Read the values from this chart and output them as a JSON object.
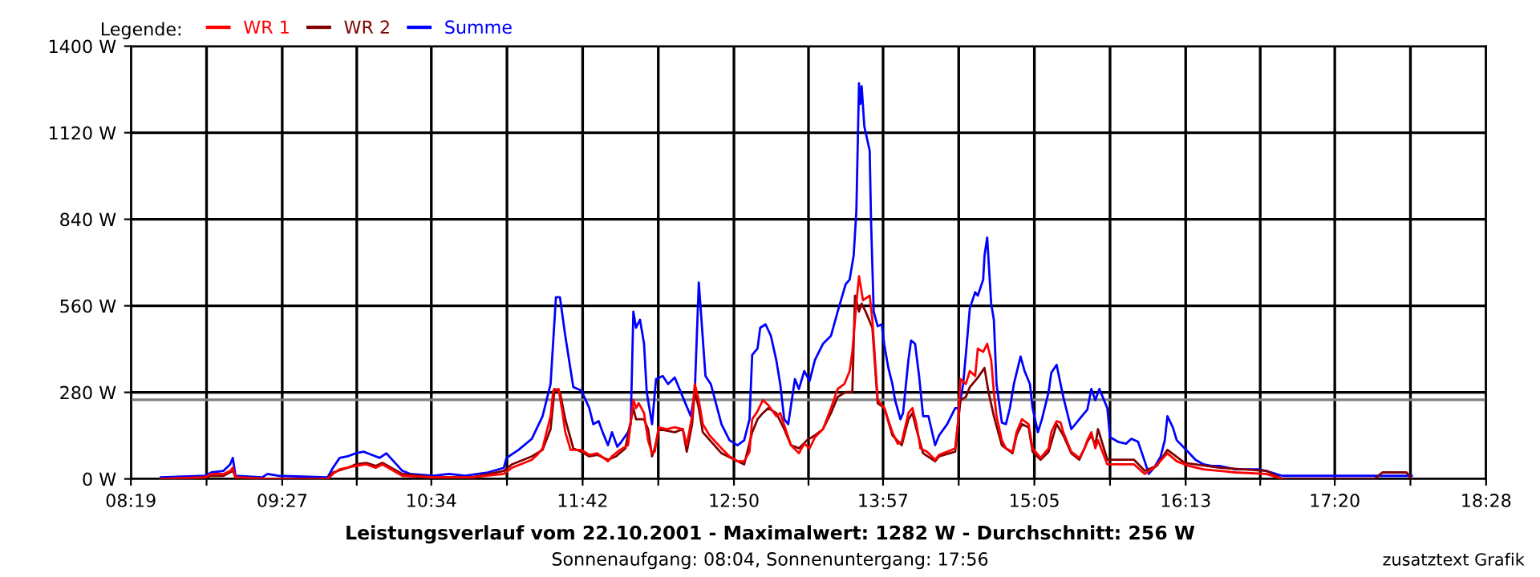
{
  "chart_data": {
    "type": "line",
    "title": "Leistungsverlauf vom 22.10.2001 - Maximalwert: 1282 W - Durchschnitt: 256 W",
    "subtitle": "Sonnenaufgang: 08:04, Sonnenuntergang: 17:56",
    "legend_title": "Legende:",
    "annotations": [
      "zusatztext Grafik"
    ],
    "xlim": [
      8.3167,
      18.4667
    ],
    "xticks": [
      {
        "value": 8.3167,
        "label": "08:19"
      },
      {
        "value": 8.8833,
        "label": null
      },
      {
        "value": 9.45,
        "label": "09:27"
      },
      {
        "value": 10.0083,
        "label": null
      },
      {
        "value": 10.5667,
        "label": "10:34"
      },
      {
        "value": 11.1333,
        "label": null
      },
      {
        "value": 11.7,
        "label": "11:42"
      },
      {
        "value": 12.2667,
        "label": null
      },
      {
        "value": 12.8333,
        "label": "12:50"
      },
      {
        "value": 13.3917,
        "label": null
      },
      {
        "value": 13.95,
        "label": "13:57"
      },
      {
        "value": 14.5167,
        "label": null
      },
      {
        "value": 15.0833,
        "label": "15:05"
      },
      {
        "value": 15.65,
        "label": null
      },
      {
        "value": 16.2167,
        "label": "16:13"
      },
      {
        "value": 16.775,
        "label": null
      },
      {
        "value": 17.3333,
        "label": "17:20"
      },
      {
        "value": 17.9,
        "label": null
      },
      {
        "value": 18.4667,
        "label": "18:28"
      }
    ],
    "ylim": [
      0,
      1400
    ],
    "yticks": [
      {
        "value": 0,
        "label": "0 W"
      },
      {
        "value": 280,
        "label": "280 W"
      },
      {
        "value": 560,
        "label": "560 W"
      },
      {
        "value": 840,
        "label": "840 W"
      },
      {
        "value": 1120,
        "label": "1120 W"
      },
      {
        "value": 1400,
        "label": "1400 W"
      }
    ],
    "grid": true,
    "legend": "top left",
    "ref_lines": [
      {
        "axis": "y",
        "value": 256,
        "color": "#808080"
      }
    ],
    "series": [
      {
        "name": "WR 1",
        "color": "#ff0000",
        "x": [
          8.54,
          8.87,
          8.92,
          9.01,
          9.06,
          9.08,
          9.1,
          9.36,
          9.79,
          9.83,
          9.88,
          10.0,
          10.08,
          10.15,
          10.2,
          10.35,
          10.58,
          10.87,
          11.11,
          11.17,
          11.32,
          11.36,
          11.4,
          11.46,
          11.48,
          11.52,
          11.55,
          11.57,
          11.61,
          11.69,
          11.75,
          11.81,
          11.89,
          11.92,
          11.98,
          12.04,
          12.08,
          12.1,
          12.12,
          12.16,
          12.19,
          12.22,
          12.24,
          12.27,
          12.33,
          12.39,
          12.45,
          12.48,
          12.52,
          12.54,
          12.57,
          12.6,
          12.65,
          12.74,
          12.8,
          12.86,
          12.91,
          12.95,
          12.97,
          13.01,
          13.05,
          13.09,
          13.15,
          13.18,
          13.26,
          13.32,
          13.36,
          13.4,
          13.44,
          13.5,
          13.56,
          13.61,
          13.66,
          13.7,
          13.72,
          13.75,
          13.77,
          13.8,
          13.85,
          13.87,
          13.91,
          13.96,
          14.0,
          14.02,
          14.06,
          14.09,
          14.14,
          14.17,
          14.2,
          14.23,
          14.28,
          14.34,
          14.37,
          14.43,
          14.49,
          14.51,
          14.53,
          14.57,
          14.6,
          14.64,
          14.66,
          14.7,
          14.73,
          14.76,
          14.78,
          14.8,
          14.84,
          14.87,
          14.92,
          14.95,
          14.99,
          15.04,
          15.07,
          15.13,
          15.19,
          15.21,
          15.25,
          15.28,
          15.3,
          15.36,
          15.42,
          15.46,
          15.48,
          15.51,
          15.54,
          15.56,
          15.63,
          15.77,
          15.83,
          15.91,
          15.98,
          16.08,
          16.15,
          16.24,
          16.35,
          16.59,
          16.82,
          16.94
        ],
        "values": [
          0,
          5,
          16,
          16,
          26,
          36,
          5,
          0,
          0,
          16,
          31,
          42,
          47,
          36,
          47,
          10,
          5,
          5,
          16,
          36,
          62,
          78,
          99,
          203,
          286,
          291,
          213,
          151,
          94,
          94,
          78,
          83,
          57,
          73,
          94,
          109,
          255,
          229,
          245,
          213,
          125,
          83,
          88,
          167,
          161,
          167,
          161,
          109,
          203,
          307,
          255,
          177,
          141,
          99,
          73,
          57,
          57,
          88,
          193,
          219,
          255,
          239,
          203,
          213,
          109,
          83,
          114,
          99,
          135,
          161,
          229,
          291,
          307,
          349,
          411,
          567,
          656,
          578,
          593,
          515,
          255,
          229,
          177,
          151,
          114,
          120,
          213,
          229,
          177,
          99,
          88,
          62,
          78,
          88,
          99,
          177,
          323,
          307,
          349,
          333,
          422,
          411,
          437,
          385,
          281,
          203,
          125,
          99,
          88,
          151,
          193,
          177,
          99,
          68,
          99,
          151,
          187,
          182,
          151,
          88,
          68,
          99,
          125,
          151,
          99,
          125,
          47,
          47,
          47,
          16,
          36,
          83,
          57,
          42,
          31,
          21,
          16,
          0
        ]
      },
      {
        "name": "WR 2",
        "color": "#800000",
        "x": [
          8.54,
          8.87,
          8.92,
          9.01,
          9.08,
          9.1,
          9.36,
          9.79,
          9.83,
          9.94,
          10.0,
          10.08,
          10.15,
          10.2,
          10.35,
          10.58,
          10.87,
          11.11,
          11.17,
          11.32,
          11.4,
          11.46,
          11.49,
          11.53,
          11.57,
          11.63,
          11.69,
          11.75,
          11.81,
          11.89,
          11.95,
          12.02,
          12.08,
          12.1,
          12.16,
          12.19,
          12.22,
          12.24,
          12.27,
          12.39,
          12.45,
          12.48,
          12.52,
          12.54,
          12.57,
          12.6,
          12.74,
          12.86,
          12.91,
          12.97,
          13.01,
          13.05,
          13.09,
          13.15,
          13.21,
          13.26,
          13.32,
          13.38,
          13.44,
          13.5,
          13.56,
          13.61,
          13.67,
          13.72,
          13.74,
          13.77,
          13.79,
          13.82,
          13.87,
          13.91,
          13.96,
          14.02,
          14.09,
          14.14,
          14.17,
          14.2,
          14.25,
          14.34,
          14.37,
          14.49,
          14.53,
          14.57,
          14.6,
          14.66,
          14.71,
          14.74,
          14.78,
          14.84,
          14.92,
          14.95,
          14.99,
          15.04,
          15.07,
          15.13,
          15.19,
          15.25,
          15.3,
          15.36,
          15.42,
          15.48,
          15.51,
          15.54,
          15.56,
          15.63,
          15.83,
          15.91,
          16.0,
          16.08,
          16.21,
          16.47,
          16.82,
          16.94,
          17.63,
          17.69,
          17.87,
          17.91
        ],
        "values": [
          0,
          5,
          10,
          10,
          26,
          5,
          0,
          0,
          21,
          36,
          47,
          52,
          42,
          52,
          16,
          5,
          5,
          26,
          47,
          73,
          94,
          161,
          291,
          281,
          193,
          99,
          88,
          73,
          78,
          62,
          73,
          99,
          229,
          193,
          193,
          161,
          73,
          99,
          161,
          151,
          161,
          88,
          177,
          286,
          229,
          151,
          83,
          57,
          47,
          151,
          193,
          213,
          229,
          213,
          161,
          109,
          99,
          125,
          141,
          161,
          213,
          265,
          281,
          281,
          593,
          541,
          567,
          541,
          489,
          245,
          229,
          141,
          109,
          193,
          213,
          161,
          83,
          57,
          73,
          88,
          255,
          265,
          297,
          328,
          359,
          281,
          203,
          109,
          83,
          141,
          177,
          167,
          88,
          62,
          88,
          177,
          141,
          83,
          62,
          120,
          141,
          109,
          161,
          62,
          62,
          26,
          42,
          94,
          52,
          36,
          26,
          0,
          0,
          21,
          21,
          0
        ]
      },
      {
        "name": "Summe",
        "color": "#0000ff",
        "x": [
          8.54,
          8.87,
          8.92,
          9.01,
          9.06,
          9.08,
          9.1,
          9.3,
          9.34,
          9.42,
          9.79,
          9.83,
          9.88,
          9.94,
          10.0,
          10.06,
          10.12,
          10.18,
          10.23,
          10.35,
          10.41,
          10.58,
          10.7,
          10.82,
          10.99,
          11.11,
          11.13,
          11.22,
          11.32,
          11.4,
          11.46,
          11.5,
          11.53,
          11.57,
          11.63,
          11.69,
          11.75,
          11.78,
          11.82,
          11.85,
          11.89,
          11.92,
          11.96,
          11.99,
          12.04,
          12.06,
          12.08,
          12.1,
          12.13,
          12.16,
          12.18,
          12.22,
          12.25,
          12.3,
          12.34,
          12.39,
          12.45,
          12.51,
          12.54,
          12.57,
          12.59,
          12.62,
          12.66,
          12.74,
          12.8,
          12.86,
          12.91,
          12.95,
          12.97,
          13.01,
          13.03,
          13.07,
          13.11,
          13.15,
          13.18,
          13.21,
          13.24,
          13.29,
          13.32,
          13.36,
          13.4,
          13.44,
          13.5,
          13.56,
          13.61,
          13.67,
          13.7,
          13.73,
          13.75,
          13.77,
          13.78,
          13.79,
          13.81,
          13.85,
          13.86,
          13.88,
          13.91,
          13.94,
          13.96,
          13.99,
          14.02,
          14.04,
          14.08,
          14.1,
          14.14,
          14.16,
          14.19,
          14.22,
          14.25,
          14.29,
          14.34,
          14.37,
          14.43,
          14.49,
          14.52,
          14.55,
          14.57,
          14.6,
          14.64,
          14.66,
          14.7,
          14.71,
          14.73,
          14.76,
          14.78,
          14.8,
          14.84,
          14.87,
          14.9,
          14.93,
          14.98,
          15.01,
          15.05,
          15.07,
          15.11,
          15.14,
          15.19,
          15.21,
          15.25,
          15.3,
          15.36,
          15.42,
          15.48,
          15.51,
          15.54,
          15.57,
          15.63,
          15.65,
          15.71,
          15.77,
          15.81,
          15.86,
          15.91,
          15.94,
          15.98,
          16.03,
          16.06,
          16.08,
          16.12,
          16.15,
          16.21,
          16.29,
          16.35,
          16.41,
          16.47,
          16.59,
          16.76,
          16.82,
          16.94,
          17.91
        ],
        "values": [
          5,
          10,
          21,
          26,
          47,
          68,
          10,
          5,
          16,
          10,
          5,
          36,
          68,
          73,
          83,
          88,
          78,
          68,
          83,
          26,
          16,
          10,
          16,
          10,
          21,
          36,
          68,
          94,
          130,
          203,
          307,
          588,
          588,
          463,
          297,
          286,
          229,
          177,
          187,
          151,
          109,
          151,
          104,
          120,
          151,
          177,
          541,
          489,
          515,
          437,
          281,
          177,
          323,
          333,
          307,
          328,
          265,
          203,
          281,
          635,
          515,
          333,
          307,
          177,
          125,
          109,
          125,
          193,
          401,
          422,
          489,
          500,
          463,
          385,
          307,
          193,
          177,
          323,
          291,
          349,
          317,
          385,
          437,
          463,
          541,
          630,
          645,
          723,
          864,
          1280,
          1213,
          1270,
          1140,
          1062,
          838,
          541,
          494,
          500,
          432,
          359,
          307,
          255,
          193,
          213,
          385,
          448,
          437,
          333,
          203,
          203,
          109,
          141,
          177,
          229,
          229,
          307,
          401,
          552,
          604,
          593,
          645,
          723,
          781,
          567,
          515,
          307,
          182,
          177,
          229,
          307,
          396,
          349,
          307,
          229,
          151,
          193,
          281,
          343,
          369,
          265,
          161,
          193,
          224,
          291,
          255,
          291,
          229,
          135,
          120,
          114,
          130,
          120,
          57,
          16,
          36,
          73,
          125,
          203,
          167,
          125,
          99,
          62,
          47,
          42,
          42,
          31,
          31,
          26,
          10,
          10
        ]
      }
    ]
  }
}
